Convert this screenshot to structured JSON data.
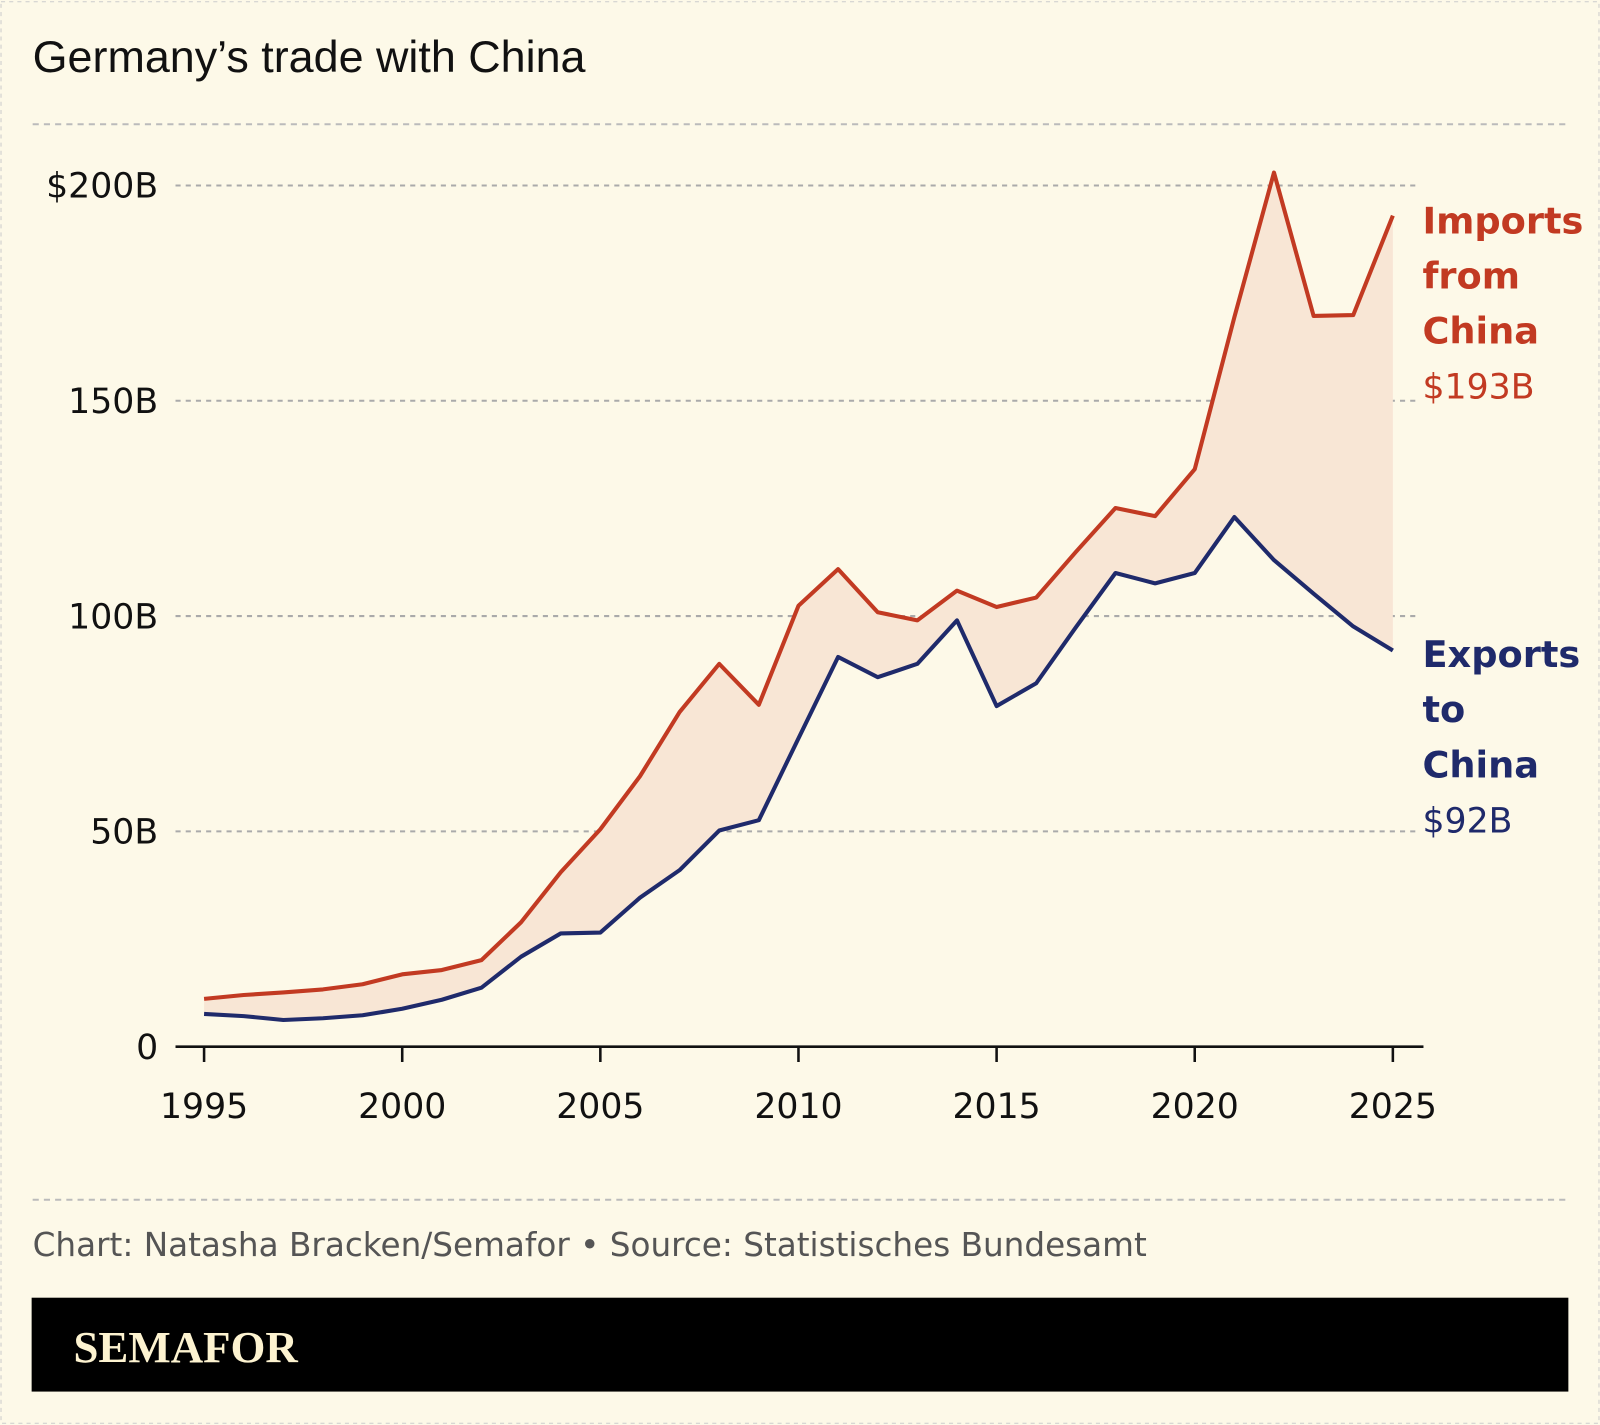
{
  "colors": {
    "background": "#fdf9e8",
    "imports": "#c23a22",
    "exports": "#1f2a6b",
    "gap_fill": "#f8e6d5",
    "banner": "#000000"
  },
  "chart_data": {
    "type": "line",
    "title": "Germany’s trade with China",
    "x": [
      1995,
      1996,
      1997,
      1998,
      1999,
      2000,
      2001,
      2002,
      2003,
      2004,
      2005,
      2006,
      2007,
      2008,
      2009,
      2010,
      2011,
      2012,
      2013,
      2014,
      2015,
      2016,
      2017,
      2018,
      2019,
      2020,
      2021,
      2022,
      2023,
      2024,
      2025
    ],
    "series": [
      {
        "name": "Imports from China",
        "label_lines": [
          "Imports",
          "from",
          "China"
        ],
        "end_label": "$193B",
        "values": [
          11.1,
          12,
          12.6,
          13.3,
          14.5,
          16.8,
          17.8,
          20.1,
          28.9,
          40.5,
          50.5,
          62.8,
          77.7,
          88.9,
          79.4,
          102.4,
          110.9,
          100.9,
          99,
          105.9,
          102.1,
          104.3,
          114.9,
          125.1,
          123.2,
          134.1,
          169.4,
          203,
          169.7,
          169.9,
          193
        ]
      },
      {
        "name": "Exports to China",
        "label_lines": [
          "Exports",
          "to",
          "China"
        ],
        "end_label": "$92B",
        "values": [
          7.6,
          7.1,
          6.2,
          6.6,
          7.3,
          8.8,
          10.9,
          13.7,
          20.9,
          26.3,
          26.5,
          34.6,
          41,
          50.2,
          52.6,
          71.6,
          90.5,
          85.8,
          88.9,
          99,
          79.1,
          84.4,
          97.4,
          110,
          107.6,
          110,
          123,
          113,
          105.2,
          97.6,
          92
        ]
      }
    ],
    "ylim": [
      0,
      200
    ],
    "yticks": [
      0,
      50,
      100,
      150,
      200
    ],
    "ytick_labels": [
      "0",
      "50B",
      "100B",
      "150B",
      "$200B"
    ],
    "xticks": [
      1995,
      2000,
      2005,
      2010,
      2015,
      2020,
      2025
    ],
    "xtick_labels": [
      "1995",
      "2000",
      "2005",
      "2010",
      "2015",
      "2020",
      "2025"
    ],
    "grid": "horizontal dotted",
    "area_between_series": true
  },
  "footer": {
    "credit": "Chart: Natasha Bracken/Semafor • Source: Statistisches Bundesamt",
    "logo": "SEMAFOR"
  }
}
